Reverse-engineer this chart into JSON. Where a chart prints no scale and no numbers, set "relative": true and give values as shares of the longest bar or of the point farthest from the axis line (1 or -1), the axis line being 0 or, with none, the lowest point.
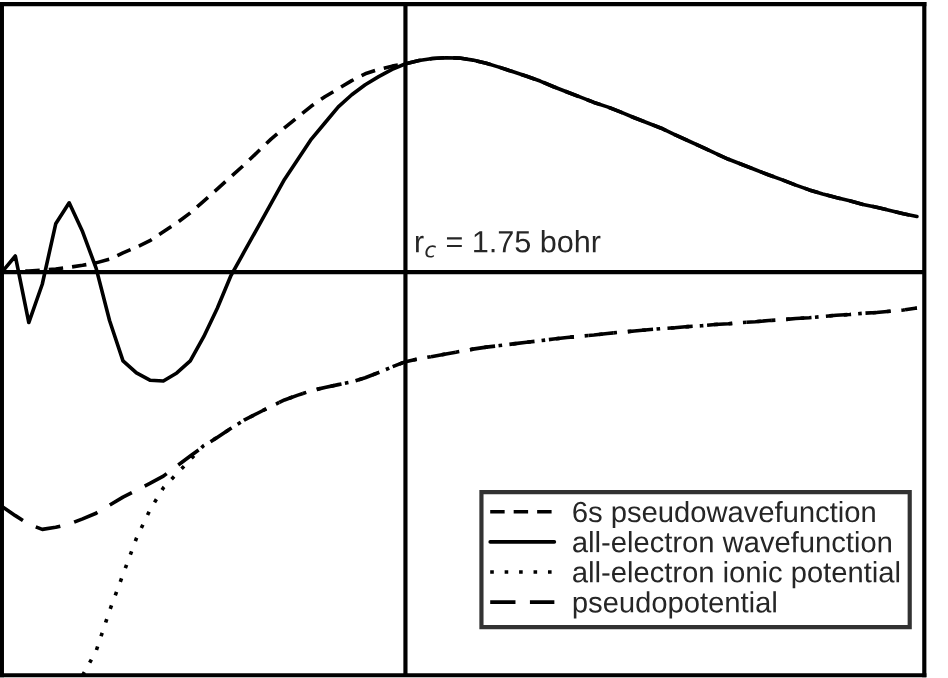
{
  "chart_data": {
    "type": "line",
    "relative": true,
    "categories": [
      null,
      null,
      null,
      null,
      null,
      null,
      null,
      null,
      null,
      null,
      null,
      null,
      null,
      null,
      null,
      null,
      null,
      null,
      null,
      null,
      null,
      null,
      null,
      null,
      null,
      null,
      null,
      null,
      null,
      null,
      null,
      null,
      null,
      null,
      null,
      null,
      null,
      null,
      null,
      null,
      null,
      null,
      null,
      null,
      null,
      null,
      null,
      null,
      null,
      null,
      null,
      null,
      null,
      null,
      null,
      null,
      null,
      null,
      null,
      null,
      null,
      null,
      null,
      null,
      null,
      null,
      null,
      null,
      null
    ],
    "legend": "bottom right",
    "annotations": [
      "r$_{c}$ = 1.75 bohr"
    ],
    "series": [
      {
        "name": "6s pseudowavefunction",
        "color": "#000000",
        "line_style": "dashed",
        "values": [
          0,
          0.001,
          0.003,
          0.005,
          0.008,
          0.012,
          0.017,
          0.023,
          0.032,
          0.048,
          0.062,
          0.078,
          0.1,
          0.122,
          0.147,
          0.176,
          0.206,
          0.236,
          0.266,
          0.298,
          0.33,
          0.358,
          0.385,
          0.412,
          0.435,
          0.455,
          0.475,
          0.492,
          0.503,
          0.511,
          0.517,
          0.525,
          0.53,
          0.532,
          0.531,
          0.526,
          0.518,
          0.508,
          0.497,
          0.486,
          0.474,
          0.46,
          0.447,
          0.434,
          0.421,
          0.41,
          0.397,
          0.383,
          0.37,
          0.357,
          0.341,
          0.326,
          0.311,
          0.295,
          0.28,
          0.267,
          0.254,
          0.241,
          0.229,
          0.216,
          0.204,
          0.194,
          0.185,
          0.177,
          0.168,
          0.161,
          0.153,
          0.145,
          0.138
        ]
      },
      {
        "name": "all-electron wavefunction",
        "color": "#000000",
        "line_style": "solid",
        "values": [
          0,
          0.04,
          -0.125,
          -0.03,
          0.12,
          0.172,
          0.1,
          0.01,
          -0.12,
          -0.22,
          -0.25,
          -0.268,
          -0.27,
          -0.25,
          -0.22,
          -0.16,
          -0.09,
          -0.01,
          0.05,
          0.11,
          0.17,
          0.23,
          0.28,
          0.33,
          0.37,
          0.41,
          0.44,
          0.465,
          0.485,
          0.503,
          0.517,
          0.525,
          0.53,
          0.532,
          0.531,
          0.526,
          0.518,
          0.508,
          0.497,
          0.486,
          0.474,
          0.46,
          0.447,
          0.434,
          0.421,
          0.41,
          0.397,
          0.383,
          0.37,
          0.357,
          0.341,
          0.326,
          0.311,
          0.295,
          0.28,
          0.267,
          0.254,
          0.241,
          0.229,
          0.216,
          0.204,
          0.194,
          0.185,
          0.177,
          0.168,
          0.161,
          0.153,
          0.145,
          0.138
        ]
      },
      {
        "name": "all-electron ionic potential",
        "color": "#000000",
        "line_style": "dotted",
        "values": [
          null,
          null,
          null,
          null,
          null,
          null,
          -1.0,
          -0.94,
          -0.84,
          -0.75,
          -0.66,
          -0.59,
          -0.535,
          -0.5,
          -0.465,
          -0.43,
          -0.41,
          -0.388,
          -0.367,
          -0.35,
          -0.333,
          -0.317,
          -0.305,
          -0.294,
          -0.286,
          -0.279,
          -0.272,
          -0.262,
          -0.249,
          -0.235,
          -0.222,
          -0.215,
          -0.209,
          -0.203,
          -0.197,
          -0.191,
          -0.186,
          -0.182,
          -0.178,
          -0.174,
          -0.17,
          -0.166,
          -0.162,
          -0.159,
          -0.156,
          -0.152,
          -0.149,
          -0.146,
          -0.143,
          -0.14,
          -0.138,
          -0.135,
          -0.133,
          -0.13,
          -0.128,
          -0.125,
          -0.123,
          -0.12,
          -0.118,
          -0.115,
          -0.113,
          -0.11,
          -0.107,
          -0.105,
          -0.102,
          -0.1,
          -0.097,
          -0.094,
          -0.089
        ]
      },
      {
        "name": "pseudopotential",
        "color": "#000000",
        "line_style": "longdash",
        "values": [
          -0.581,
          -0.604,
          -0.625,
          -0.638,
          -0.633,
          -0.625,
          -0.612,
          -0.598,
          -0.578,
          -0.558,
          -0.541,
          -0.524,
          -0.506,
          -0.481,
          -0.456,
          -0.432,
          -0.41,
          -0.388,
          -0.367,
          -0.35,
          -0.333,
          -0.317,
          -0.305,
          -0.294,
          -0.286,
          -0.279,
          -0.272,
          -0.262,
          -0.249,
          -0.235,
          -0.222,
          -0.215,
          -0.209,
          -0.203,
          -0.197,
          -0.191,
          -0.186,
          -0.182,
          -0.178,
          -0.174,
          -0.17,
          -0.166,
          -0.162,
          -0.159,
          -0.156,
          -0.152,
          -0.149,
          -0.146,
          -0.143,
          -0.14,
          -0.138,
          -0.135,
          -0.133,
          -0.13,
          -0.128,
          -0.125,
          -0.123,
          -0.12,
          -0.118,
          -0.115,
          -0.113,
          -0.11,
          -0.107,
          -0.105,
          -0.102,
          -0.1,
          -0.097,
          -0.094,
          -0.089
        ]
      }
    ]
  }
}
